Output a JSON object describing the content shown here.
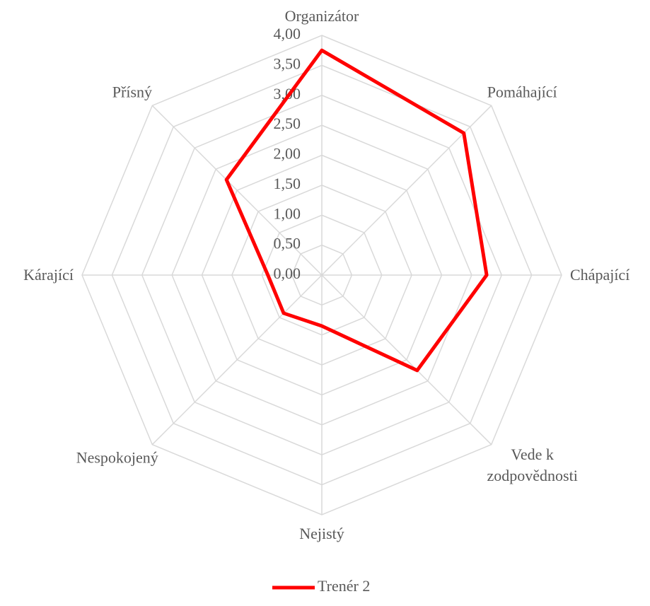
{
  "chart_data": {
    "type": "radar",
    "categories": [
      "Organizátor",
      "Pomáhající",
      "Chápající",
      "Vede k zodpovědnosti",
      "Nejistý",
      "Nespokojený",
      "Kárající",
      "Přísný"
    ],
    "series": [
      {
        "name": "Trenér 2",
        "color": "#ff0000",
        "values": [
          3.75,
          3.35,
          2.75,
          2.25,
          0.85,
          0.9,
          0.9,
          2.25
        ]
      }
    ],
    "ylim": [
      0,
      4
    ],
    "yticks": [
      {
        "value": 0,
        "label": "0,00"
      },
      {
        "value": 0.5,
        "label": "0,50"
      },
      {
        "value": 1,
        "label": "1,00"
      },
      {
        "value": 1.5,
        "label": "1,50"
      },
      {
        "value": 2,
        "label": "2,00"
      },
      {
        "value": 2.5,
        "label": "2,50"
      },
      {
        "value": 3,
        "label": "3,00"
      },
      {
        "value": 3.5,
        "label": "3,50"
      },
      {
        "value": 4,
        "label": "4,00"
      }
    ],
    "grid": true,
    "legend": "bottom"
  }
}
